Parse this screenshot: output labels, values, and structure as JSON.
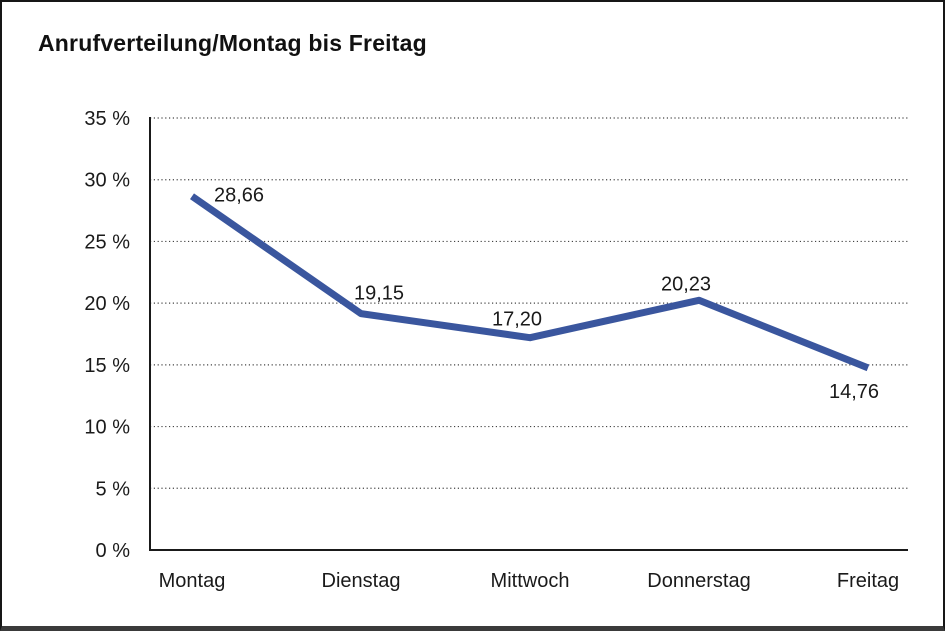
{
  "title": "Anrufverteilung/Montag bis Freitag",
  "chart_data": {
    "type": "line",
    "title": "Anrufverteilung/Montag bis Freitag",
    "categories": [
      "Montag",
      "Dienstag",
      "Mittwoch",
      "Donnerstag",
      "Freitag"
    ],
    "series": [
      {
        "name": "Anrufverteilung",
        "values": [
          28.66,
          19.15,
          17.2,
          20.23,
          14.76
        ],
        "data_labels": [
          "28,66",
          "19,15",
          "17,20",
          "20,23",
          "14,76"
        ],
        "color": "#3A569E"
      }
    ],
    "xlabel": "",
    "ylabel": "",
    "ylim": [
      0,
      35
    ],
    "y_ticks": {
      "values": [
        0,
        5,
        10,
        15,
        20,
        25,
        30,
        35
      ],
      "labels": [
        "0 %",
        "5 %",
        "10 %",
        "15 %",
        "20 %",
        "25 %",
        "30 %",
        "35 %"
      ]
    },
    "grid": "horizontal-dotted",
    "legend": "none"
  },
  "colors": {
    "line": "#3A569E",
    "axis": "#1A1A1A",
    "grid": "#454545",
    "text": "#1A1A1A",
    "background": "#FFFFFF"
  }
}
